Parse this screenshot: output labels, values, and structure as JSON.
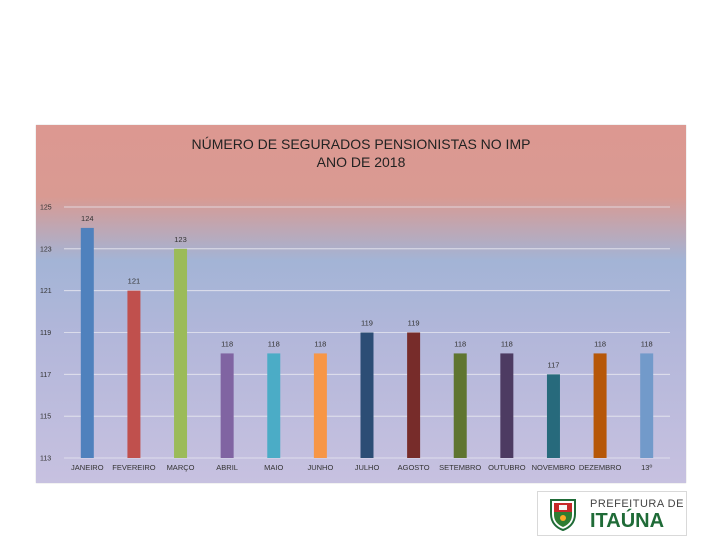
{
  "chart_data": {
    "type": "bar",
    "title_lines": [
      "NÚMERO DE SEGURADOS PENSIONISTAS NO IMP",
      "ANO DE 2018"
    ],
    "categories": [
      "JANEIRO",
      "FEVEREIRO",
      "MARÇO",
      "ABRIL",
      "MAIO",
      "JUNHO",
      "JULHO",
      "AGOSTO",
      "SETEMBRO",
      "OUTUBRO",
      "NOVEMBRO",
      "DEZEMBRO",
      "13º"
    ],
    "values": [
      124,
      121,
      123,
      118,
      118,
      118,
      119,
      119,
      118,
      118,
      117,
      118,
      118
    ],
    "colors": [
      "#4f81bd",
      "#c0504d",
      "#9bbb59",
      "#8064a2",
      "#4bacc6",
      "#f79646",
      "#2c4d75",
      "#772c2a",
      "#5f7530",
      "#4d3b62",
      "#276a7c",
      "#b65708",
      "#729aca"
    ],
    "ylim": [
      113,
      125
    ],
    "yticks": [
      113,
      115,
      117,
      119,
      121,
      123,
      125
    ],
    "grid": true
  },
  "logo": {
    "line1": "PREFEITURA DE",
    "line2": "ITAÚNA"
  }
}
